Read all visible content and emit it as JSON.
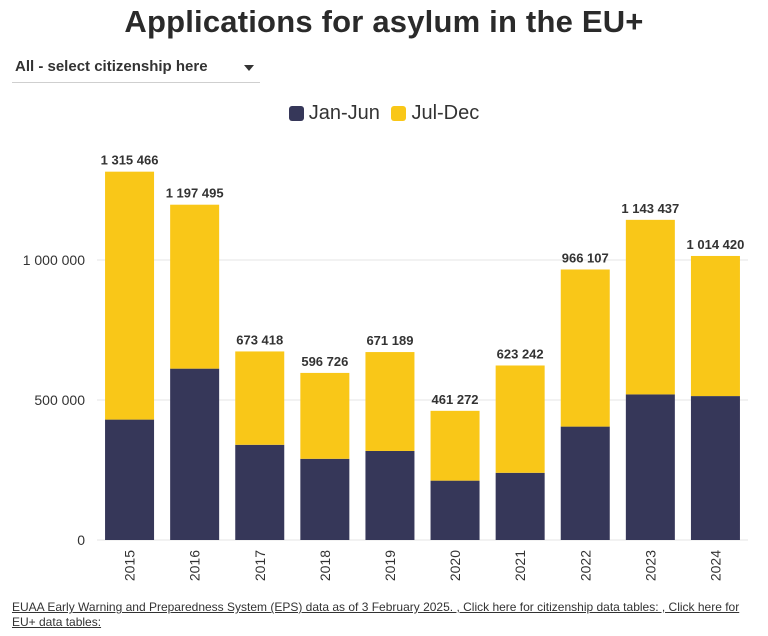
{
  "header": {
    "title": "Applications for asylum in the EU+"
  },
  "filter": {
    "selected": "All - select citizenship here"
  },
  "footer": {
    "source": "EUAA Early Warning and Preparedness System (EPS) data as of 3 February 2025. , Click here for citizenship data tables: , Click here for EU+ data tables:"
  },
  "colors": {
    "jan_jun": "#363759",
    "jul_dec": "#f9c718",
    "gridline": "#e6e6e6",
    "text": "#333333"
  },
  "chart_data": {
    "type": "bar",
    "stacked": true,
    "title": "Applications for asylum in the EU+",
    "categories": [
      "2015",
      "2016",
      "2017",
      "2018",
      "2019",
      "2020",
      "2021",
      "2022",
      "2023",
      "2024"
    ],
    "series": [
      {
        "name": "Jan-Jun",
        "values": [
          430000,
          612000,
          340000,
          290000,
          318000,
          212000,
          240000,
          405000,
          520000,
          514000
        ]
      },
      {
        "name": "Jul-Dec",
        "values": [
          885466,
          585495,
          333418,
          306726,
          353189,
          249272,
          383242,
          561107,
          623437,
          500420
        ]
      }
    ],
    "totals": [
      1315466,
      1197495,
      673418,
      596726,
      671189,
      461272,
      623242,
      966107,
      1143437,
      1014420
    ],
    "total_labels": [
      "1 315 466",
      "1 197 495",
      "673 418",
      "596 726",
      "671 189",
      "461 272",
      "623 242",
      "966 107",
      "1 143 437",
      "1 014 420"
    ],
    "y_ticks": [
      0,
      500000,
      1000000
    ],
    "y_tick_labels": [
      "0",
      "500 000",
      "1 000 000"
    ],
    "ylim": [
      0,
      1400000
    ],
    "xlabel": "",
    "ylabel": "",
    "grid": true,
    "legend_position": "top"
  }
}
